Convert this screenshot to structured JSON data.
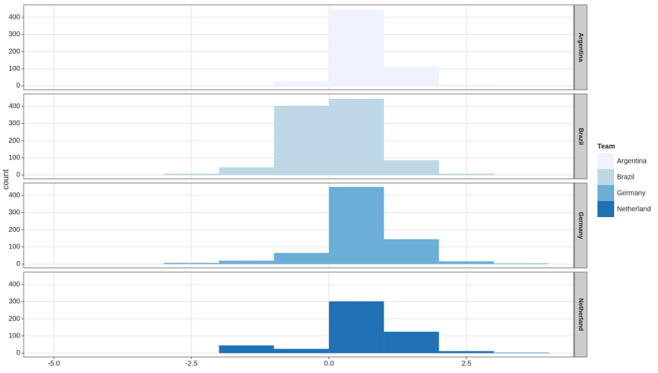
{
  "chart_data": {
    "type": "histogram",
    "facet": true,
    "ylabel": "count",
    "legend_title": "Team",
    "bins": [
      -3,
      -2,
      -1,
      0,
      1,
      2,
      3,
      4
    ],
    "series": [
      {
        "name": "Argentina",
        "color": "#eff3ff",
        "values": [
          0,
          0,
          28,
          445,
          113,
          8,
          0
        ]
      },
      {
        "name": "Brazil",
        "color": "#bdd7e7",
        "values": [
          8,
          45,
          404,
          444,
          86,
          8,
          0
        ]
      },
      {
        "name": "Germany",
        "color": "#6baed6",
        "values": [
          7,
          20,
          65,
          450,
          145,
          16,
          4
        ]
      },
      {
        "name": "Netherland",
        "color": "#2171b5",
        "values": [
          0,
          45,
          25,
          302,
          125,
          12,
          3
        ]
      }
    ],
    "xlim": [
      -5.55,
      4.45
    ],
    "xticks": [
      {
        "value": -5,
        "label": "-5.0"
      },
      -2.5,
      {
        "value": 0,
        "label": "0.0"
      },
      2.5
    ],
    "ylim": [
      -22.5,
      472.5
    ],
    "yticks": [
      0,
      100,
      200,
      300,
      400
    ],
    "grid": true
  }
}
